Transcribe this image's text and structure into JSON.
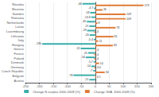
{
  "chart_data": {
    "type": "bar",
    "orientation": "horizontal",
    "categories": [
      "Slovakia",
      "Slovenia",
      "Sweden",
      "Romania",
      "Netherlands",
      "Latvia",
      "Luxembourg",
      "Lithuania",
      "Italy",
      "Hungary",
      "Greece",
      "France",
      "Poland",
      "Denmark",
      "Germany",
      "Czech Republic",
      "Belgium",
      "Austria"
    ],
    "series": [
      {
        "name": "Change N surplus 2000-2008 (%)",
        "color": "#3aada8",
        "values": [
          -46,
          -4.7,
          -18,
          -13.8,
          -30,
          -21,
          -29,
          -20,
          -5.4,
          -190,
          -52,
          -25,
          -34,
          -5.7,
          -14,
          -7,
          -78,
          -21
        ]
      },
      {
        "name": "Change GVA  2000-2008 (%)",
        "color": "#e07b39",
        "values": [
          173,
          26,
          109,
          109,
          8,
          73,
          -4,
          65,
          11,
          63,
          4,
          -4,
          -4,
          14,
          -3.4,
          34,
          3.1,
          0.3
        ],
        "value_labels": [
          "173",
          "26",
          "109",
          "109",
          "8",
          "73",
          "-4",
          "65",
          "11",
          "63",
          "4",
          "-4",
          "-4",
          "14",
          "-3.4",
          "34",
          "3.1",
          null
        ]
      }
    ],
    "xlim": [
      -250,
      200
    ],
    "xticks": [
      -250,
      -200,
      -150,
      -100,
      -50,
      0,
      50,
      100,
      150,
      200
    ],
    "grid": true,
    "legend": "bottom",
    "data_labels": true
  }
}
